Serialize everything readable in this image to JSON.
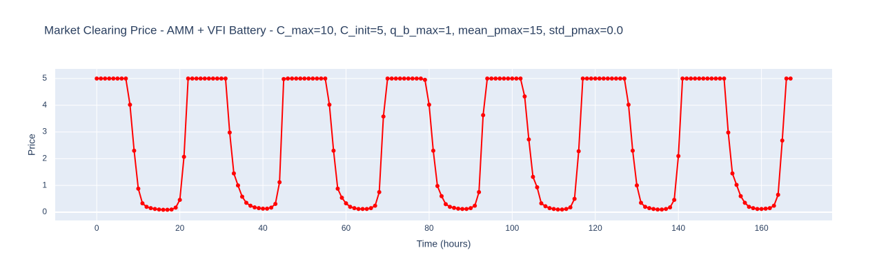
{
  "chart_data": {
    "type": "line",
    "title": "Market Clearing Price  - AMM + VFI Battery - C_max=10, C_init=5, q_b_max=1, mean_pmax=15, std_pmax=0.0",
    "x_label": "Time (hours)",
    "y_label": "Price",
    "x": [
      0,
      1,
      2,
      3,
      4,
      5,
      6,
      7,
      8,
      9,
      10,
      11,
      12,
      13,
      14,
      15,
      16,
      17,
      18,
      19,
      20,
      21,
      22,
      23,
      24,
      25,
      26,
      27,
      28,
      29,
      30,
      31,
      32,
      33,
      34,
      35,
      36,
      37,
      38,
      39,
      40,
      41,
      42,
      43,
      44,
      45,
      46,
      47,
      48,
      49,
      50,
      51,
      52,
      53,
      54,
      55,
      56,
      57,
      58,
      59,
      60,
      61,
      62,
      63,
      64,
      65,
      66,
      67,
      68,
      69,
      70,
      71,
      72,
      73,
      74,
      75,
      76,
      77,
      78,
      79,
      80,
      81,
      82,
      83,
      84,
      85,
      86,
      87,
      88,
      89,
      90,
      91,
      92,
      93,
      94,
      95,
      96,
      97,
      98,
      99,
      100,
      101,
      102,
      103,
      104,
      105,
      106,
      107,
      108,
      109,
      110,
      111,
      112,
      113,
      114,
      115,
      116,
      117,
      118,
      119,
      120,
      121,
      122,
      123,
      124,
      125,
      126,
      127,
      128,
      129,
      130,
      131,
      132,
      133,
      134,
      135,
      136,
      137,
      138,
      139,
      140,
      141,
      142,
      143,
      144,
      145,
      146,
      147,
      148,
      149,
      150,
      151,
      152,
      153,
      154,
      155,
      156,
      157,
      158,
      159,
      160,
      161,
      162,
      163,
      164,
      165,
      166,
      167
    ],
    "series": [
      {
        "color": "#ff0000",
        "values": [
          5,
          5,
          5,
          5,
          5,
          5,
          5,
          5,
          4.02,
          2.3,
          0.88,
          0.33,
          0.2,
          0.15,
          0.12,
          0.1,
          0.09,
          0.09,
          0.1,
          0.17,
          0.46,
          2.07,
          5,
          5,
          5,
          5,
          5,
          5,
          5,
          5,
          5,
          5,
          2.98,
          1.45,
          1.0,
          0.58,
          0.35,
          0.24,
          0.18,
          0.15,
          0.13,
          0.13,
          0.17,
          0.31,
          1.12,
          4.98,
          5,
          5,
          5,
          5,
          5,
          5,
          5,
          5,
          5,
          5,
          4.02,
          2.3,
          0.88,
          0.54,
          0.33,
          0.2,
          0.15,
          0.12,
          0.12,
          0.12,
          0.15,
          0.24,
          0.75,
          3.58,
          5,
          5,
          5,
          5,
          5,
          5,
          5,
          5,
          5,
          4.95,
          4.02,
          2.3,
          0.98,
          0.6,
          0.3,
          0.2,
          0.16,
          0.13,
          0.12,
          0.12,
          0.15,
          0.24,
          0.75,
          3.63,
          5,
          5,
          5,
          5,
          5,
          5,
          5,
          5,
          5,
          4.33,
          2.72,
          1.32,
          0.93,
          0.33,
          0.22,
          0.15,
          0.12,
          0.1,
          0.1,
          0.12,
          0.18,
          0.5,
          2.28,
          5,
          5,
          5,
          5,
          5,
          5,
          5,
          5,
          5,
          5,
          5,
          4.02,
          2.3,
          1.0,
          0.35,
          0.2,
          0.15,
          0.12,
          0.1,
          0.1,
          0.12,
          0.18,
          0.46,
          2.1,
          5,
          5,
          5,
          5,
          5,
          5,
          5,
          5,
          5,
          5,
          5,
          2.98,
          1.45,
          1.02,
          0.6,
          0.35,
          0.2,
          0.15,
          0.12,
          0.12,
          0.13,
          0.15,
          0.24,
          0.65,
          2.68,
          5,
          5
        ]
      }
    ],
    "xlim": [
      -10,
      177
    ],
    "ylim": [
      -0.31,
      5.36
    ],
    "xticks": [
      0,
      20,
      40,
      60,
      80,
      100,
      120,
      140,
      160
    ],
    "yticks": [
      0,
      1,
      2,
      3,
      4,
      5
    ],
    "grid": true
  }
}
